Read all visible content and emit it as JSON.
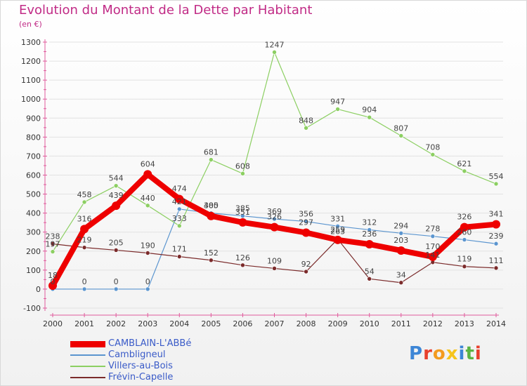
{
  "colors": {
    "title": "#c12b86",
    "axis": "#333333",
    "grid": "#e2e2e2"
  },
  "header": {
    "title": "Evolution du Montant de la Dette par Habitant",
    "subtitle": "(en €)"
  },
  "brand": {
    "text": "Proxiti",
    "letter_colors": [
      "#3d86d6",
      "#e8402d",
      "#f39b1f",
      "#f6c41b",
      "#3d86d6",
      "#5bb443",
      "#e8402d"
    ]
  },
  "chart_data": {
    "type": "line",
    "title": "Evolution du Montant de la Dette par Habitant",
    "subtitle": "(en €)",
    "xlabel": "",
    "ylabel": "",
    "x": [
      "2000",
      "2001",
      "2002",
      "2003",
      "2004",
      "2005",
      "2006",
      "2007",
      "2008",
      "2009",
      "2010",
      "2011",
      "2012",
      "2013",
      "2014"
    ],
    "ylim": [
      -100,
      1300
    ],
    "yticks": [
      -100,
      0,
      100,
      200,
      300,
      400,
      500,
      600,
      700,
      800,
      900,
      1000,
      1100,
      1200,
      1300
    ],
    "grid": false,
    "legend": "bottom-left",
    "series": [
      {
        "name": "Cambligneul",
        "color": "#5b95cf",
        "width": 1.2,
        "marker": 3,
        "values": [
          0,
          0,
          0,
          0,
          421,
          400,
          385,
          369,
          356,
          331,
          312,
          294,
          278,
          260,
          239
        ],
        "labels": [
          "0",
          "0",
          "0",
          "0",
          "421",
          "400",
          "385",
          "369",
          "356",
          "331",
          "312",
          "294",
          "278",
          "260",
          "239"
        ]
      },
      {
        "name": "Villers-au-Bois",
        "color": "#8ccf62",
        "width": 1.2,
        "marker": 3,
        "values": [
          197,
          458,
          544,
          440,
          333,
          681,
          608,
          1247,
          848,
          947,
          904,
          807,
          708,
          621,
          554
        ],
        "labels": [
          "197",
          "458",
          "544",
          "440",
          "333",
          "681",
          "608",
          "1247",
          "848",
          "947",
          "904",
          "807",
          "708",
          "621",
          "554"
        ]
      },
      {
        "name": "Frévin-Capelle",
        "color": "#7b2b2b",
        "width": 1.2,
        "marker": 3,
        "values": [
          238,
          219,
          205,
          190,
          171,
          152,
          126,
          109,
          92,
          263,
          54,
          34,
          141,
          119,
          111
        ],
        "labels": [
          "238",
          "219",
          "205",
          "190",
          "171",
          "152",
          "126",
          "109",
          "92",
          "263",
          "54",
          "34",
          "141",
          "119",
          "111"
        ]
      },
      {
        "name": "CAMBLAIN-L'ABBé",
        "color": "#ee0000",
        "width": 8,
        "marker": 6,
        "values": [
          18,
          316,
          439,
          604,
          474,
          385,
          351,
          326,
          297,
          259,
          236,
          203,
          170,
          326,
          341
        ],
        "labels": [
          "18",
          "316",
          "439",
          "604",
          "474",
          "385",
          "351",
          "326",
          "297",
          "259",
          "236",
          "203",
          "170",
          "326",
          "341"
        ]
      }
    ],
    "legend_order": [
      "CAMBLAIN-L'ABBé",
      "Cambligneul",
      "Villers-au-Bois",
      "Frévin-Capelle"
    ]
  }
}
